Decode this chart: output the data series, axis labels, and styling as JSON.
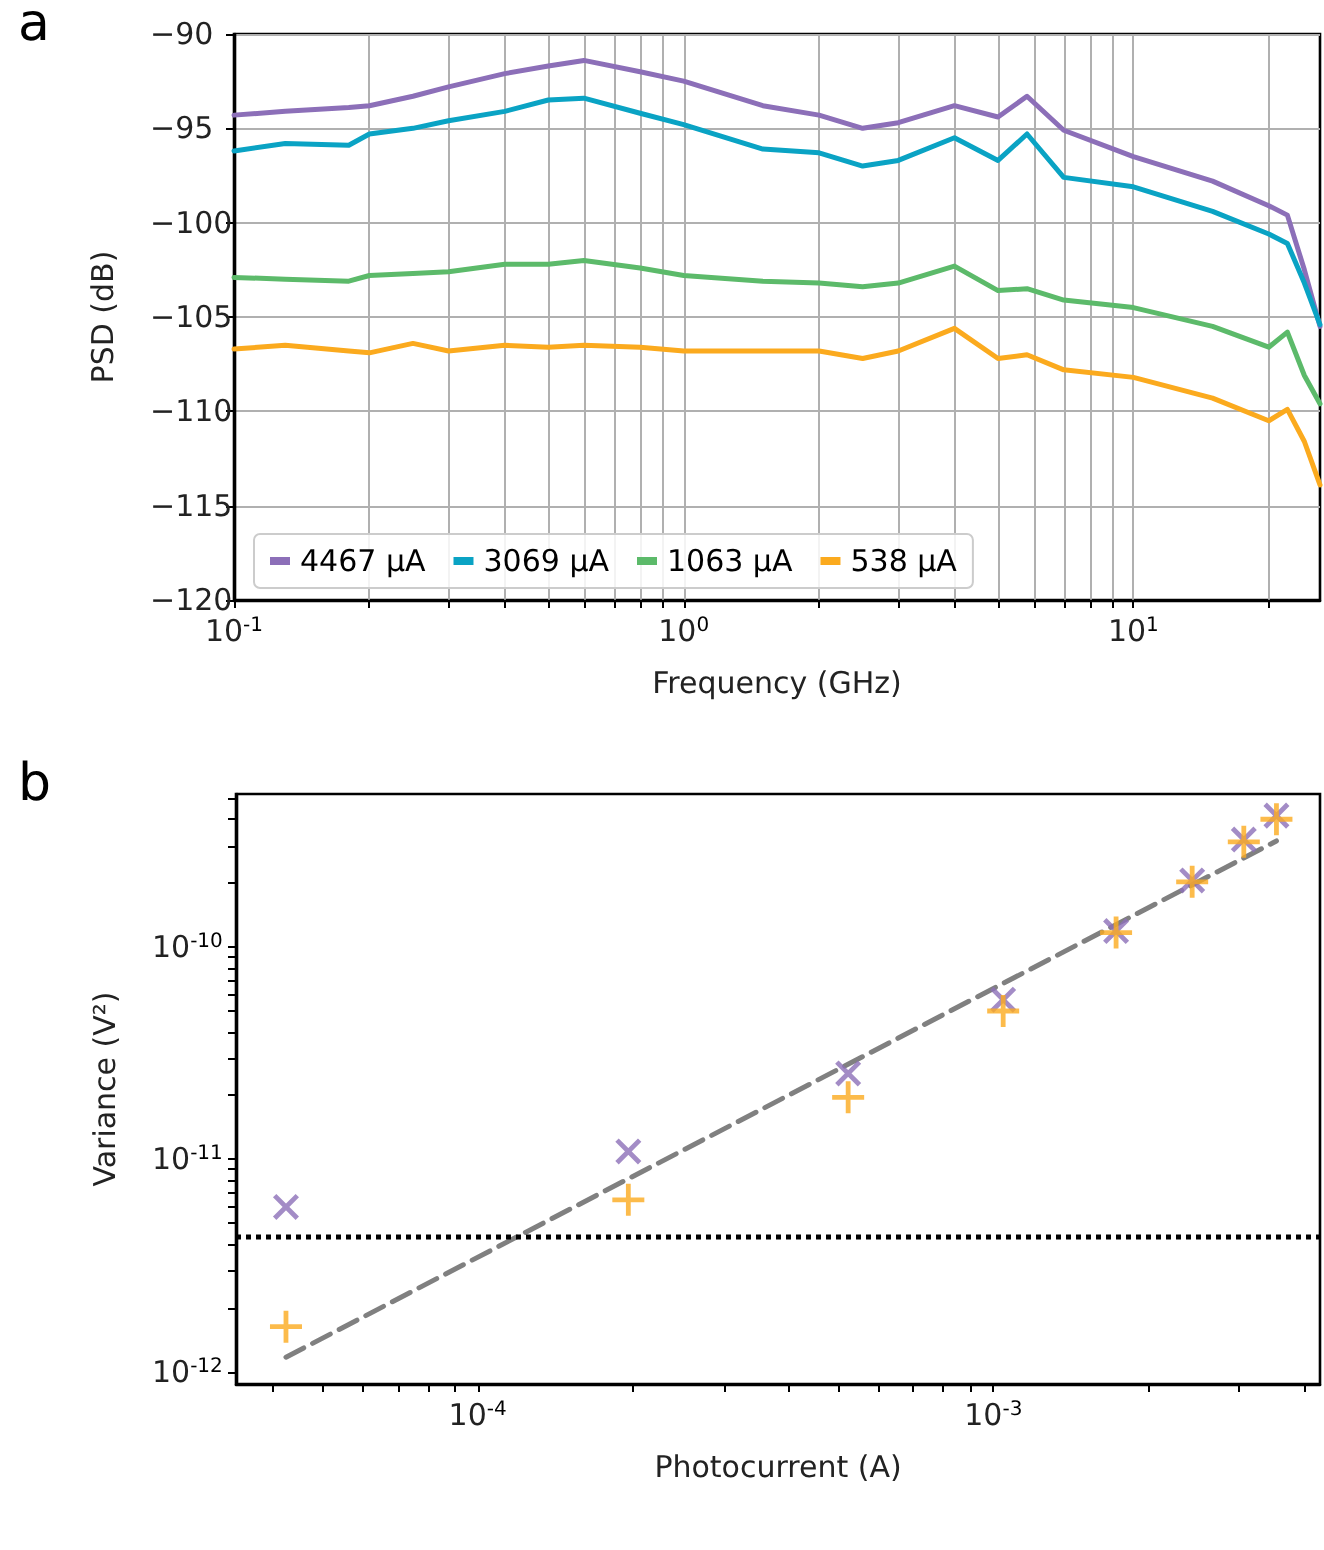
{
  "chart_data": [
    {
      "type": "line",
      "title": "a",
      "xlabel": "Frequency (GHz)",
      "ylabel": "PSD (dB)",
      "log": "x",
      "grid": true,
      "legend": "bottom left",
      "line_style": "solid",
      "marker": "none",
      "xlim": [
        0.1,
        26
      ],
      "ylim": [
        -120,
        -90
      ],
      "xticks": [
        {
          "value": 0.1,
          "label": "10$^{-1}$"
        },
        {
          "value": 0.2,
          "label": null
        },
        {
          "value": 0.3,
          "label": null
        },
        {
          "value": 0.4,
          "label": null
        },
        {
          "value": 0.5,
          "label": null
        },
        {
          "value": 0.6,
          "label": null
        },
        {
          "value": 0.7,
          "label": null
        },
        {
          "value": 0.8,
          "label": null
        },
        {
          "value": 0.9,
          "label": null
        },
        {
          "value": 1,
          "label": "10$^{0}$"
        },
        {
          "value": 2,
          "label": null
        },
        {
          "value": 3,
          "label": null
        },
        {
          "value": 4,
          "label": null
        },
        {
          "value": 5,
          "label": null
        },
        {
          "value": 6,
          "label": null
        },
        {
          "value": 7,
          "label": null
        },
        {
          "value": 8,
          "label": null
        },
        {
          "value": 9,
          "label": null
        },
        {
          "value": 10,
          "label": "10$^{1}$"
        },
        {
          "value": 20,
          "label": null
        }
      ],
      "yticks": [
        {
          "value": -120,
          "label": "−120"
        },
        {
          "value": -115,
          "label": "−115"
        },
        {
          "value": -110,
          "label": "−110"
        },
        {
          "value": -105,
          "label": "−105"
        },
        {
          "value": -100,
          "label": "−100"
        },
        {
          "value": -95,
          "label": "−95"
        },
        {
          "value": -90,
          "label": "−90"
        }
      ],
      "x": [
        0.1,
        0.13,
        0.18,
        0.2,
        0.25,
        0.3,
        0.4,
        0.5,
        0.6,
        0.8,
        1,
        1.5,
        2,
        2.5,
        3,
        4,
        5,
        5.8,
        7,
        10,
        15,
        20,
        22,
        24,
        26
      ],
      "series": [
        {
          "name": "4467 μA",
          "color": "#8c6fb8",
          "values": [
            -94.3,
            -94.1,
            -93.9,
            -93.8,
            -93.3,
            -92.8,
            -92.1,
            -91.7,
            -91.4,
            -92.0,
            -92.5,
            -93.8,
            -94.3,
            -95.0,
            -94.7,
            -93.8,
            -94.4,
            -93.3,
            -95.1,
            -96.5,
            -97.8,
            -99.1,
            -99.6,
            -102.5,
            -105.5
          ]
        },
        {
          "name": "3069 μA",
          "color": "#0aa3c4",
          "values": [
            -96.2,
            -95.8,
            -95.9,
            -95.3,
            -95.0,
            -94.6,
            -94.1,
            -93.5,
            -93.4,
            -94.2,
            -94.8,
            -96.1,
            -96.3,
            -97.0,
            -96.7,
            -95.5,
            -96.7,
            -95.3,
            -97.6,
            -98.1,
            -99.4,
            -100.6,
            -101.1,
            -103.2,
            -105.4
          ]
        },
        {
          "name": "1063 μA",
          "color": "#5cba6a",
          "values": [
            -102.9,
            -103.0,
            -103.1,
            -102.8,
            -102.7,
            -102.6,
            -102.2,
            -102.2,
            -102.0,
            -102.4,
            -102.8,
            -103.1,
            -103.2,
            -103.4,
            -103.2,
            -102.3,
            -103.6,
            -103.5,
            -104.1,
            -104.5,
            -105.5,
            -106.6,
            -105.8,
            -108.1,
            -109.6
          ]
        },
        {
          "name": "538 μA",
          "color": "#fbaa1e",
          "values": [
            -106.7,
            -106.5,
            -106.8,
            -106.9,
            -106.4,
            -106.8,
            -106.5,
            -106.6,
            -106.5,
            -106.6,
            -106.8,
            -106.8,
            -106.8,
            -107.2,
            -106.8,
            -105.6,
            -107.2,
            -107.0,
            -107.8,
            -108.2,
            -109.3,
            -110.5,
            -109.9,
            -111.6,
            -113.9
          ]
        }
      ]
    },
    {
      "type": "scatter",
      "title": "b",
      "xlabel": "Photocurrent (A)",
      "ylabel": "Variance (V²)",
      "log": "xy",
      "grid": false,
      "marker": "cross",
      "xlim": [
        3.4e-05,
        0.0043
      ],
      "ylim": [
        8.75e-13,
        5.26e-10
      ],
      "xticks": [
        {
          "value": 4e-05,
          "label": null
        },
        {
          "value": 5e-05,
          "label": null
        },
        {
          "value": 6e-05,
          "label": null
        },
        {
          "value": 7e-05,
          "label": null
        },
        {
          "value": 8e-05,
          "label": null
        },
        {
          "value": 9e-05,
          "label": null
        },
        {
          "value": 0.0001,
          "label": "10$^{-4}$"
        },
        {
          "value": 0.0002,
          "label": null
        },
        {
          "value": 0.0003,
          "label": null
        },
        {
          "value": 0.0004,
          "label": null
        },
        {
          "value": 0.0005,
          "label": null
        },
        {
          "value": 0.0006,
          "label": null
        },
        {
          "value": 0.0007,
          "label": null
        },
        {
          "value": 0.0008,
          "label": null
        },
        {
          "value": 0.0009,
          "label": null
        },
        {
          "value": 0.001,
          "label": "10$^{-3}$"
        },
        {
          "value": 0.002,
          "label": null
        },
        {
          "value": 0.003,
          "label": null
        },
        {
          "value": 0.004,
          "label": null
        }
      ],
      "yticks": [
        {
          "value": 1e-12,
          "label": "10$^{-12}$"
        },
        {
          "value": 2e-12,
          "label": null
        },
        {
          "value": 3e-12,
          "label": null
        },
        {
          "value": 4e-12,
          "label": null
        },
        {
          "value": 5e-12,
          "label": null
        },
        {
          "value": 6e-12,
          "label": null
        },
        {
          "value": 7e-12,
          "label": null
        },
        {
          "value": 8e-12,
          "label": null
        },
        {
          "value": 9e-12,
          "label": null
        },
        {
          "value": 1e-11,
          "label": "10$^{-11}$"
        },
        {
          "value": 2e-11,
          "label": null
        },
        {
          "value": 3e-11,
          "label": null
        },
        {
          "value": 4e-11,
          "label": null
        },
        {
          "value": 5e-11,
          "label": null
        },
        {
          "value": 6e-11,
          "label": null
        },
        {
          "value": 7e-11,
          "label": null
        },
        {
          "value": 8e-11,
          "label": null
        },
        {
          "value": 9e-11,
          "label": null
        },
        {
          "value": 1e-10,
          "label": "10$^{-10}$"
        },
        {
          "value": 2e-10,
          "label": null
        },
        {
          "value": 3e-10,
          "label": null
        },
        {
          "value": 4e-10,
          "label": null
        },
        {
          "value": 5e-10,
          "label": null
        }
      ],
      "x": [
        4.25e-05,
        0.000196,
        0.000523,
        0.001045,
        0.00173,
        0.00243,
        0.00306,
        0.00354
      ],
      "series": [
        {
          "color": "#8c6fb8",
          "values": [
            5.97e-12,
            1.09e-11,
            2.54e-11,
            5.65e-11,
            1.19e-10,
            2.06e-10,
            3.21e-10,
            4.16e-10
          ]
        },
        {
          "color": "#fbaa1e",
          "values": [
            1.63e-12,
            6.45e-12,
            1.96e-11,
            5e-11,
            1.17e-10,
            2.03e-10,
            3.13e-10,
            4e-10
          ]
        },
        {
          "type": "line",
          "color": "#808080",
          "line_style": "dashed",
          "marker": "none",
          "x": [
            4.25e-05,
            0.00354
          ],
          "values": [
            1.17e-12,
            3.16e-10
          ]
        }
      ],
      "ref_lines": [
        {
          "axis": "y",
          "value": 4.35e-12,
          "color": "#000000",
          "line_style": "dotted"
        }
      ]
    }
  ]
}
